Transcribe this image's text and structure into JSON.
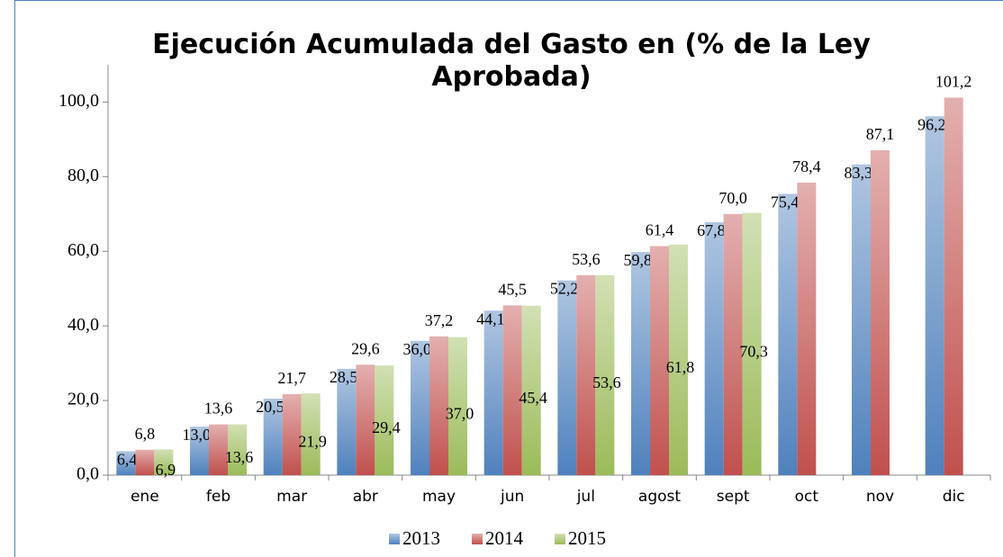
{
  "chart_data": {
    "type": "bar",
    "title": "Ejecución Acumulada del Gasto en (% de la Ley Aprobada)",
    "categories": [
      "ene",
      "feb",
      "mar",
      "abr",
      "may",
      "jun",
      "jul",
      "agost",
      "sept",
      "oct",
      "nov",
      "dic"
    ],
    "series": [
      {
        "name": "2013",
        "color": "#4f81bd",
        "values": [
          6.4,
          13.0,
          20.5,
          28.5,
          36.0,
          44.1,
          52.2,
          59.8,
          67.8,
          75.4,
          83.3,
          96.2
        ],
        "value_labels": [
          "6,4",
          "13,0",
          "20,5",
          "28,5",
          "36,0",
          "44,1",
          "52,2",
          "59,8",
          "67,8",
          "75,4",
          "83,3",
          "96,2"
        ]
      },
      {
        "name": "2014",
        "color": "#c0504d",
        "values": [
          6.8,
          13.6,
          21.7,
          29.6,
          37.2,
          45.5,
          53.6,
          61.4,
          70.0,
          78.4,
          87.1,
          101.2
        ],
        "value_labels": [
          "6,8",
          "13,6",
          "21,7",
          "29,6",
          "37,2",
          "45,5",
          "53,6",
          "61,4",
          "70,0",
          "78,4",
          "87,1",
          "101,2"
        ]
      },
      {
        "name": "2015",
        "color": "#9bbb59",
        "values": [
          6.9,
          13.6,
          21.9,
          29.4,
          37.0,
          45.4,
          53.6,
          61.8,
          70.3,
          null,
          null,
          null
        ],
        "value_labels": [
          "6,9",
          "13,6",
          "21,9",
          "29,4",
          "37,0",
          "45,4",
          "53,6",
          "61,8",
          "70,3",
          null,
          null,
          null
        ]
      }
    ],
    "ylim": [
      0,
      110
    ],
    "yticks": [
      {
        "value": 0,
        "label": "0,0"
      },
      {
        "value": 20,
        "label": "20,0"
      },
      {
        "value": 40,
        "label": "40,0"
      },
      {
        "value": 60,
        "label": "60,0"
      },
      {
        "value": 80,
        "label": "80,0"
      },
      {
        "value": 100,
        "label": "100,0"
      }
    ],
    "grid": false,
    "legend": "bottom"
  }
}
